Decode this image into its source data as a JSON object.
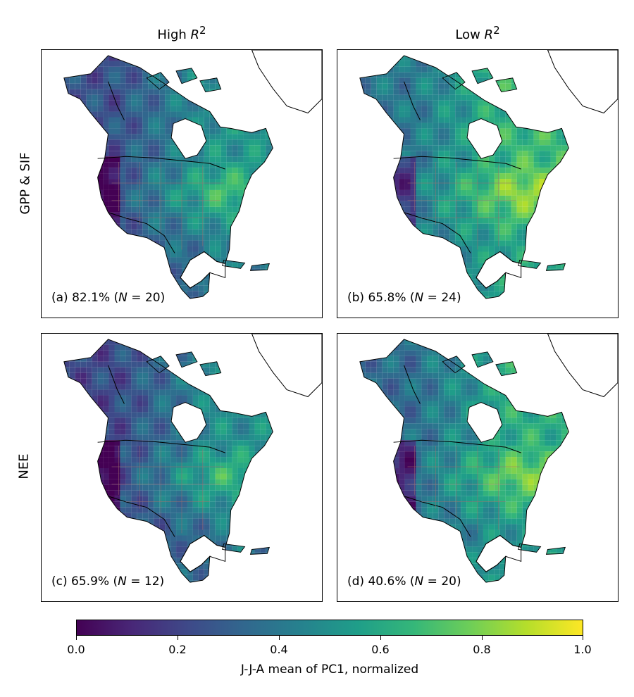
{
  "columns": [
    {
      "text": "High ",
      "sym": "R",
      "sup": "2"
    },
    {
      "text": "Low ",
      "sym": "R",
      "sup": "2"
    }
  ],
  "rows": [
    "GPP & SIF",
    "NEE"
  ],
  "panels": [
    {
      "id": "a",
      "letter": "(a)",
      "pct": "82.1%",
      "n_label": "N",
      "n": "20",
      "row": 0,
      "col": 0,
      "mean_level": 0.45
    },
    {
      "id": "b",
      "letter": "(b)",
      "pct": "65.8%",
      "n_label": "N",
      "n": "24",
      "row": 0,
      "col": 1,
      "mean_level": 0.6
    },
    {
      "id": "c",
      "letter": "(c)",
      "pct": "65.9%",
      "n_label": "N",
      "n": "12",
      "row": 1,
      "col": 0,
      "mean_level": 0.42
    },
    {
      "id": "d",
      "letter": "(d)",
      "pct": "40.6%",
      "n_label": "N",
      "n": "20",
      "row": 1,
      "col": 1,
      "mean_level": 0.55
    }
  ],
  "colorbar": {
    "colormap": "viridis",
    "min": 0.0,
    "max": 1.0,
    "ticks": [
      "0.0",
      "0.2",
      "0.4",
      "0.6",
      "0.8",
      "1.0"
    ],
    "label": "J-J-A mean of PC1, normalized"
  }
}
